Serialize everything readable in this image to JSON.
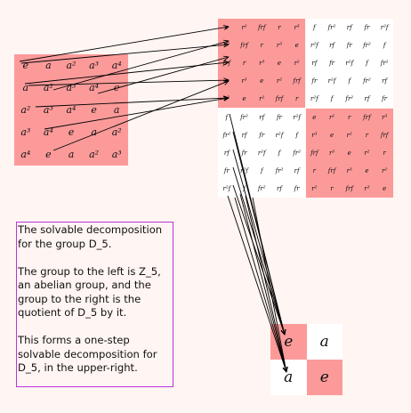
{
  "left_group": {
    "rows": [
      [
        "e",
        "a",
        "a²",
        "a³",
        "a⁴"
      ],
      [
        "a",
        "a²",
        "a³",
        "a⁴",
        "e"
      ],
      [
        "a²",
        "a³",
        "a⁴",
        "e",
        "a"
      ],
      [
        "a³",
        "a⁴",
        "e",
        "a",
        "a²"
      ],
      [
        "a⁴",
        "e",
        "a",
        "a²",
        "a³"
      ]
    ]
  },
  "big_table": {
    "rows": [
      [
        "e",
        "r²",
        "frf",
        "r",
        "r³",
        "f",
        "fr²",
        "rf",
        "fr",
        "r²f"
      ],
      [
        "r²",
        "frf",
        "r",
        "r³",
        "e",
        "r²f",
        "rf",
        "fr",
        "fr²",
        "f"
      ],
      [
        "frf",
        "r",
        "r³",
        "e",
        "r²",
        "rf",
        "fr",
        "r²f",
        "f",
        "fr²"
      ],
      [
        "r",
        "r³",
        "e",
        "r²",
        "frf",
        "fr",
        "r²f",
        "f",
        "fr²",
        "rf"
      ],
      [
        "r³",
        "e",
        "r²",
        "frf",
        "r",
        "r²f",
        "f",
        "fr²",
        "rf",
        "fr"
      ],
      [
        "f",
        "fr²",
        "rf",
        "fr",
        "r²f",
        "e",
        "r²",
        "r",
        "frf",
        "r³"
      ],
      [
        "fr²",
        "rf",
        "fr",
        "r²f",
        "f",
        "r³",
        "e",
        "r²",
        "r",
        "frf"
      ],
      [
        "rf",
        "fr",
        "r²f",
        "f",
        "fr²",
        "frf",
        "r³",
        "e",
        "r²",
        "r"
      ],
      [
        "fr",
        "r²f",
        "f",
        "fr²",
        "rf",
        "r",
        "frf",
        "r³",
        "e",
        "r²"
      ],
      [
        "r²f",
        "f",
        "fr²",
        "rf",
        "fr",
        "r²",
        "r",
        "frf",
        "r³",
        "e"
      ]
    ]
  },
  "quotient": {
    "rows": [
      [
        "e",
        "a"
      ],
      [
        "a",
        "e"
      ]
    ]
  },
  "caption": {
    "lines": [
      "The solvable decomposition",
      "for the group D_5.",
      "",
      "The group to the left is Z_5,",
      "an abelian group, and the",
      "group to the right is the",
      "quotient of D_5 by it.",
      "",
      "This forms a one-step",
      "solvable decomposition for",
      "D_5, in the upper-right."
    ]
  },
  "colors": {
    "pink": "#fc9a9a",
    "white": "#ffffff",
    "background": "#fff5f2",
    "caption_border": "#bb33dd",
    "arrow": "#000000"
  }
}
